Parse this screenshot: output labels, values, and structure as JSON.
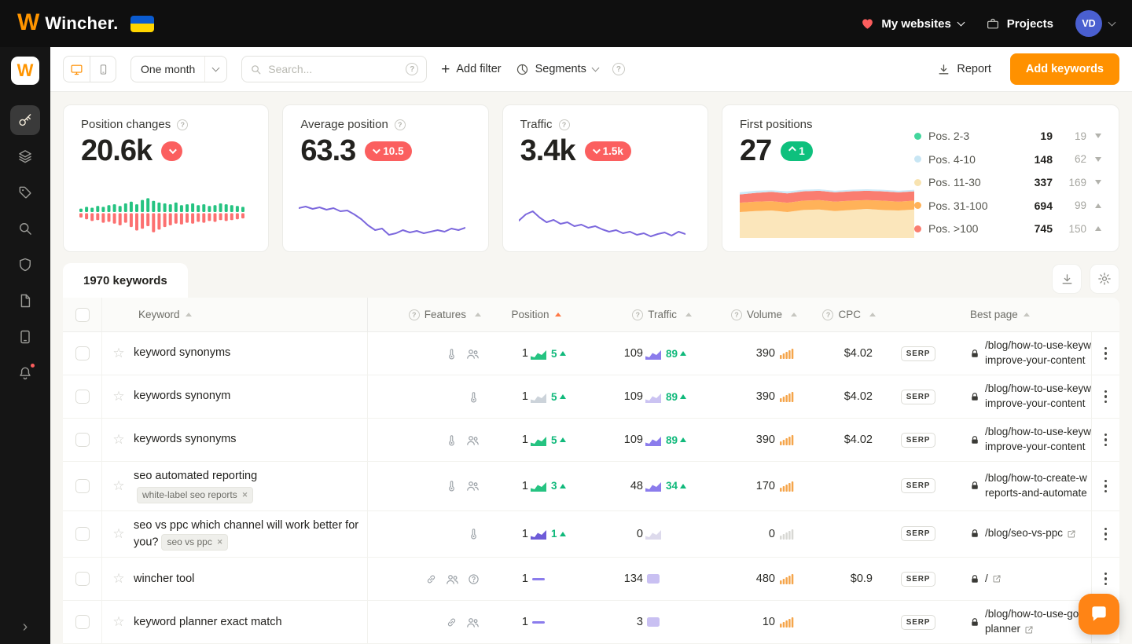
{
  "colors": {
    "orange": "#ff9100",
    "red": "#fb5f5f",
    "green": "#0ec07d",
    "purple": "#7c68dd"
  },
  "header": {
    "logo": "Wincher.",
    "my_websites": "My websites",
    "projects": "Projects",
    "avatar": "VD"
  },
  "sidebar": {
    "icons": [
      "key-icon",
      "layers-icon",
      "tag-icon",
      "search-icon",
      "shield-icon",
      "document-icon",
      "tablet-icon",
      "bell-icon"
    ],
    "active_index": 0
  },
  "toolbar": {
    "period": "One month",
    "search_placeholder": "Search...",
    "add_filter": "Add filter",
    "segments": "Segments",
    "report": "Report",
    "add_keywords": "Add keywords"
  },
  "cards": {
    "position_changes": {
      "title": "Position changes",
      "value": "20.6k"
    },
    "average_position": {
      "title": "Average position",
      "value": "63.3",
      "delta": "10.5"
    },
    "traffic": {
      "title": "Traffic",
      "value": "3.4k",
      "delta": "1.5k"
    },
    "first_positions": {
      "title": "First positions",
      "value": "27",
      "delta": "1",
      "legend": [
        {
          "label": "Pos. 2-3",
          "value": "19",
          "delta": "19",
          "dir": "down",
          "color": "#43d69d"
        },
        {
          "label": "Pos. 4-10",
          "value": "148",
          "delta": "62",
          "dir": "down",
          "color": "#c8e6f4"
        },
        {
          "label": "Pos. 11-30",
          "value": "337",
          "delta": "169",
          "dir": "down",
          "color": "#f8e3b0"
        },
        {
          "label": "Pos. 31-100",
          "value": "694",
          "delta": "99",
          "dir": "up",
          "color": "#ffb259"
        },
        {
          "label": "Pos. >100",
          "value": "745",
          "delta": "150",
          "dir": "up",
          "color": "#fa7d70"
        }
      ]
    }
  },
  "charts": {
    "position_changes": {
      "ups": [
        4,
        6,
        5,
        7,
        6,
        8,
        9,
        7,
        10,
        12,
        9,
        14,
        16,
        13,
        11,
        10,
        9,
        11,
        8,
        9,
        10,
        8,
        9,
        7,
        8,
        10,
        9,
        8,
        7,
        6
      ],
      "downs": [
        5,
        7,
        9,
        8,
        11,
        10,
        12,
        14,
        11,
        16,
        20,
        18,
        15,
        22,
        19,
        16,
        14,
        12,
        13,
        11,
        12,
        10,
        11,
        9,
        10,
        8,
        9,
        8,
        7,
        6
      ],
      "up_color": "#25c381",
      "down_color": "#fc7070"
    },
    "average_position": {
      "points": [
        20,
        18,
        21,
        19,
        22,
        20,
        24,
        23,
        28,
        34,
        42,
        48,
        46,
        54,
        52,
        48,
        51,
        49,
        52,
        50,
        48,
        50,
        46,
        48,
        45
      ],
      "color": "#7c68dd"
    },
    "traffic": {
      "points": [
        26,
        18,
        14,
        22,
        28,
        25,
        30,
        28,
        33,
        31,
        35,
        33,
        37,
        40,
        38,
        42,
        40,
        44,
        42,
        46,
        43,
        41,
        45,
        40,
        43
      ],
      "color": "#7c68dd"
    },
    "first_positions": {
      "bands": [
        {
          "color": "#fbe6bb",
          "upper": [
            0.5,
            0.48,
            0.47,
            0.5,
            0.46,
            0.45,
            0.48,
            0.46,
            0.44,
            0.46,
            0.47,
            0.45
          ]
        },
        {
          "color": "#ffb259",
          "upper": [
            0.32,
            0.3,
            0.29,
            0.32,
            0.28,
            0.27,
            0.3,
            0.28,
            0.27,
            0.28,
            0.3,
            0.28
          ]
        },
        {
          "color": "#fa7d70",
          "upper": [
            0.16,
            0.13,
            0.11,
            0.14,
            0.1,
            0.09,
            0.12,
            0.1,
            0.09,
            0.1,
            0.12,
            0.1
          ]
        },
        {
          "color": "#cde9f7",
          "upper": [
            0.12,
            0.09,
            0.08,
            0.1,
            0.07,
            0.06,
            0.09,
            0.07,
            0.06,
            0.07,
            0.09,
            0.07
          ]
        }
      ]
    }
  },
  "table": {
    "tab": "1970 keywords",
    "serp_label": "SERP",
    "headers": {
      "keyword": "Keyword",
      "features": "Features",
      "position": "Position",
      "traffic": "Traffic",
      "volume": "Volume",
      "cpc": "CPC",
      "best_page": "Best page"
    },
    "rows": [
      {
        "keyword": "keyword synonyms",
        "features": [
          "thermometer",
          "users"
        ],
        "position": "1",
        "pos_change": "5",
        "pos_mini": {
          "type": "area",
          "color": "#25c381"
        },
        "traffic": "109",
        "traf_change": "89",
        "traf_mini": {
          "type": "area",
          "color": "#8b7cec"
        },
        "volume": "390",
        "vol_color": "#f5a54b",
        "cpc": "$4.02",
        "page": {
          "lines": [
            "/blog/how-to-use-keyw",
            "improve-your-content"
          ],
          "lock": true,
          "external": false
        }
      },
      {
        "keyword": "keywords synonym",
        "features": [
          "thermometer"
        ],
        "position": "1",
        "pos_change": "5",
        "pos_mini": {
          "type": "area",
          "color": "#ccd3da"
        },
        "traffic": "109",
        "traf_change": "89",
        "traf_mini": {
          "type": "area",
          "color": "#cbc3f2"
        },
        "volume": "390",
        "vol_color": "#f5a54b",
        "cpc": "$4.02",
        "page": {
          "lines": [
            "/blog/how-to-use-keyw",
            "improve-your-content"
          ],
          "lock": true,
          "external": false
        }
      },
      {
        "keyword": "keywords synonyms",
        "features": [
          "thermometer",
          "users"
        ],
        "position": "1",
        "pos_change": "5",
        "pos_mini": {
          "type": "area",
          "color": "#25c381"
        },
        "traffic": "109",
        "traf_change": "89",
        "traf_mini": {
          "type": "area",
          "color": "#8b7cec"
        },
        "volume": "390",
        "vol_color": "#f5a54b",
        "cpc": "$4.02",
        "page": {
          "lines": [
            "/blog/how-to-use-keyw",
            "improve-your-content"
          ],
          "lock": true,
          "external": false
        }
      },
      {
        "keyword": "seo automated reporting",
        "tag": "white-label seo reports",
        "tag_layout": "below",
        "features": [
          "thermometer",
          "users"
        ],
        "position": "1",
        "pos_change": "3",
        "pos_mini": {
          "type": "area",
          "color": "#25c381"
        },
        "traffic": "48",
        "traf_change": "34",
        "traf_mini": {
          "type": "area",
          "color": "#8b7cec"
        },
        "volume": "170",
        "vol_color": "#f5a54b",
        "cpc": "",
        "page": {
          "lines": [
            "/blog/how-to-create-w",
            "reports-and-automate"
          ],
          "lock": true,
          "external": false
        }
      },
      {
        "keyword": "seo vs ppc which channel will work better for you?",
        "tag": "seo vs ppc",
        "tag_layout": "inline",
        "features": [
          "thermometer"
        ],
        "position": "1",
        "pos_change": "1",
        "pos_mini": {
          "type": "area",
          "color": "#6d5bd8"
        },
        "traffic": "0",
        "traf_change": "",
        "traf_mini": {
          "type": "area",
          "color": "#dddaec"
        },
        "volume": "0",
        "vol_color": "#d8d8d4",
        "cpc": "",
        "page": {
          "lines": [
            "/blog/seo-vs-ppc"
          ],
          "lock": true,
          "external": true
        }
      },
      {
        "keyword": "wincher tool",
        "features": [
          "link",
          "users",
          "question"
        ],
        "position": "1",
        "pos_change": "",
        "pos_mini": {
          "type": "flat",
          "color": "#8b7cec"
        },
        "traffic": "134",
        "traf_change": "",
        "traf_mini": {
          "type": "block",
          "color": "#c9c0f2"
        },
        "volume": "480",
        "vol_color": "#f5a54b",
        "cpc": "$0.9",
        "page": {
          "lines": [
            "/"
          ],
          "lock": true,
          "external": true
        }
      },
      {
        "keyword": "keyword planner exact match",
        "features": [
          "link",
          "users"
        ],
        "position": "1",
        "pos_change": "",
        "pos_mini": {
          "type": "flat",
          "color": "#8b7cec"
        },
        "traffic": "3",
        "traf_change": "",
        "traf_mini": {
          "type": "block",
          "color": "#c9c0f2"
        },
        "volume": "10",
        "vol_color": "#f5a54b",
        "cpc": "",
        "page": {
          "lines": [
            "/blog/how-to-use-go",
            "planner"
          ],
          "lock": true,
          "external": true
        }
      }
    ]
  }
}
